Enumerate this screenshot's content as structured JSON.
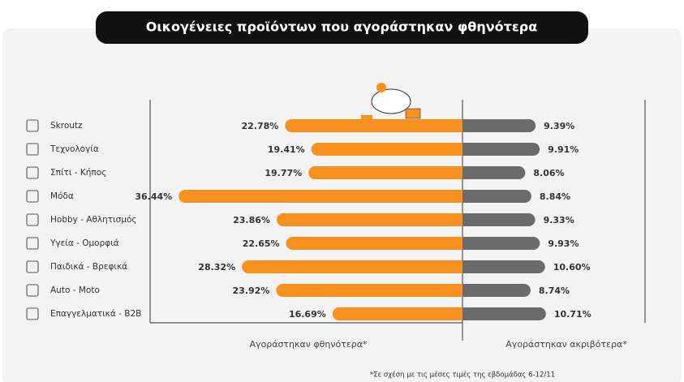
{
  "chart_data": {
    "type": "diverging_bar",
    "title": "Οικογένειες προϊόντων που αγοράστηκαν φθηνότερα",
    "categories": [
      "Skroutz",
      "Τεχνολογία",
      "Σπίτι - Κήπος",
      "Μόδα",
      "Hobby - Αθλητισμός",
      "Υγεία - Ομορφιά",
      "Παιδικά - Βρεφικά",
      "Auto - Moto",
      "Επαγγελματικά - B2B"
    ],
    "series": [
      {
        "name": "Αγοράστηκαν φθηνότερα*",
        "color": "#f7901e",
        "side": "left",
        "values": [
          22.78,
          19.41,
          19.77,
          36.44,
          23.86,
          22.65,
          28.32,
          23.92,
          16.69
        ],
        "value_labels": [
          "22.78%",
          "19.41%",
          "19.77%",
          "36.44%",
          "23.86%",
          "22.65%",
          "28.32%",
          "23.92%",
          "16.69%"
        ]
      },
      {
        "name": "Αγοράστηκαν ακριβότερα*",
        "color": "#6b6b6b",
        "side": "right",
        "values": [
          9.39,
          9.91,
          8.06,
          8.84,
          9.33,
          9.93,
          10.6,
          8.74,
          10.71
        ],
        "value_labels": [
          "9.39%",
          "9.91%",
          "8.06%",
          "8.84%",
          "9.33%",
          "9.93%",
          "10.60%",
          "8.74%",
          "10.71%"
        ]
      }
    ],
    "footnote": "*Σε σχέση με τις μέσες τιμές της εβδομάδας 6-12/11"
  }
}
